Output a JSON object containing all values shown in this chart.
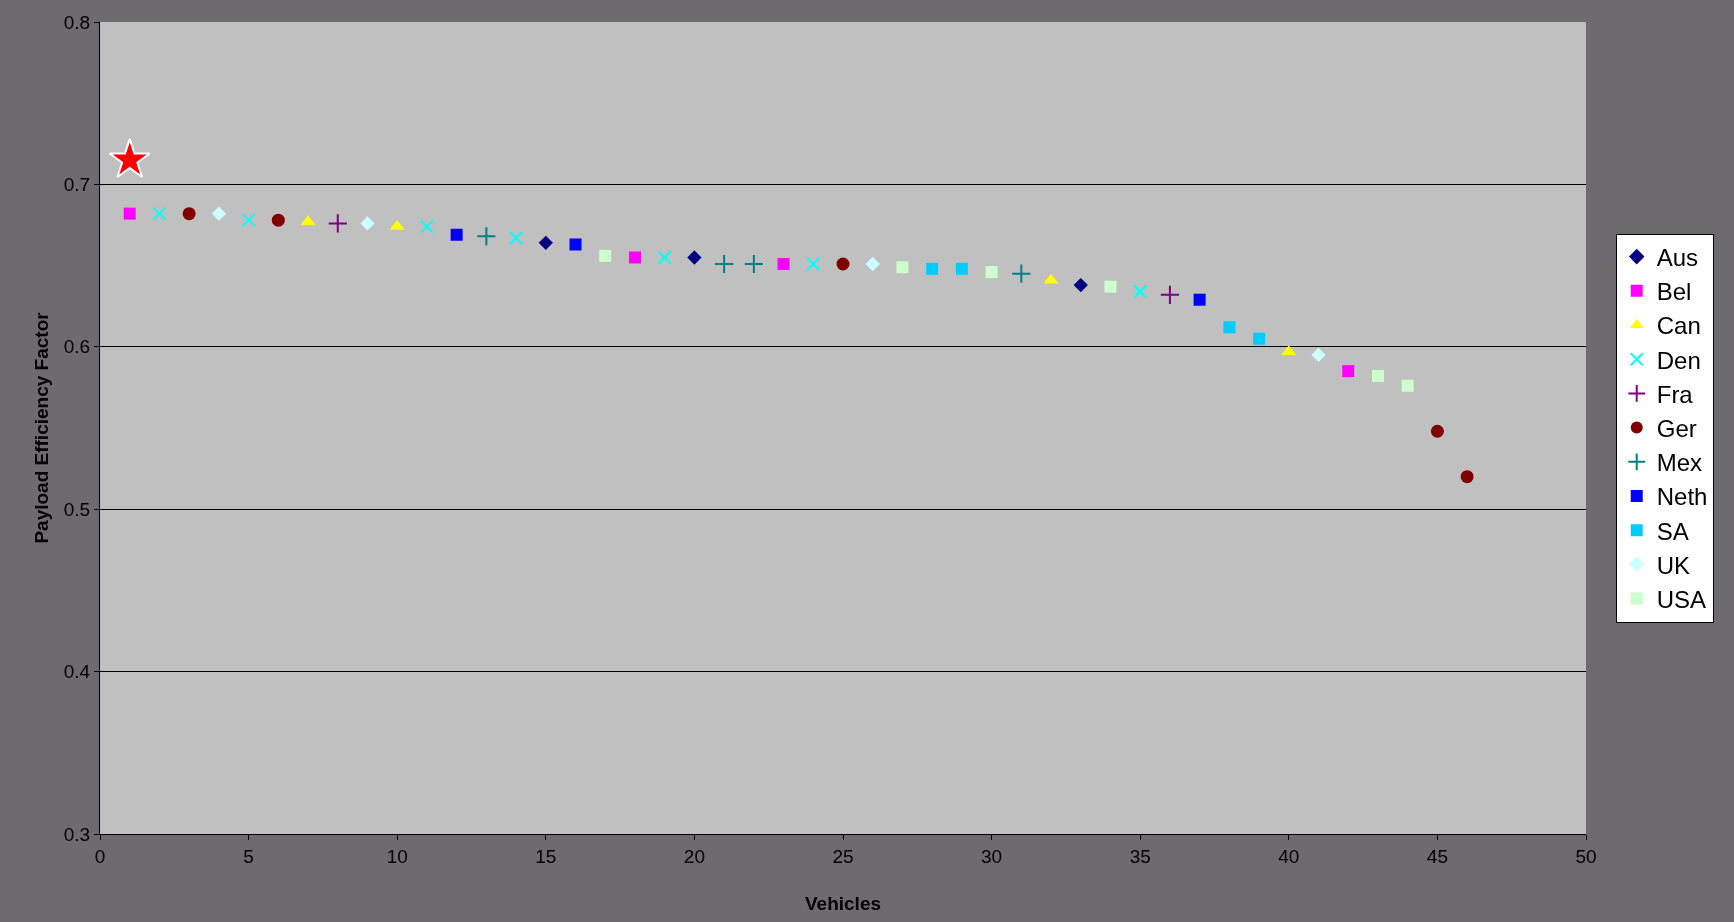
{
  "chart_data": {
    "type": "scatter",
    "xlabel": "Vehicles",
    "ylabel": "Payload Efficiency Factor",
    "xlim": [
      0,
      50
    ],
    "xticks": [
      0,
      5,
      10,
      15,
      20,
      25,
      30,
      35,
      40,
      45,
      50
    ],
    "ylim": [
      0.3,
      0.8
    ],
    "yticks": [
      0.3,
      0.4,
      0.5,
      0.6,
      0.7,
      0.8
    ],
    "grid": "y",
    "legend": "right",
    "series": [
      {
        "name": "Aus",
        "color": "#000080",
        "marker": "diamond",
        "x": [
          15,
          20,
          33
        ],
        "values": [
          0.664,
          0.655,
          0.638
        ]
      },
      {
        "name": "Bel",
        "color": "#ff00ff",
        "marker": "square",
        "x": [
          1,
          18,
          23,
          42
        ],
        "values": [
          0.682,
          0.655,
          0.651,
          0.585
        ]
      },
      {
        "name": "Can",
        "color": "#ffff00",
        "marker": "triangle",
        "x": [
          7,
          10,
          32,
          40
        ],
        "values": [
          0.677,
          0.674,
          0.641,
          0.597
        ]
      },
      {
        "name": "Den",
        "color": "#00ffff",
        "marker": "x",
        "x": [
          2,
          5,
          11,
          14,
          19,
          24,
          35
        ],
        "values": [
          0.682,
          0.678,
          0.674,
          0.667,
          0.655,
          0.651,
          0.634
        ]
      },
      {
        "name": "Fra",
        "color": "#800080",
        "marker": "cross",
        "x": [
          8,
          36
        ],
        "values": [
          0.676,
          0.632
        ]
      },
      {
        "name": "Ger",
        "color": "#800000",
        "marker": "circle",
        "x": [
          3,
          6,
          25,
          45,
          46
        ],
        "values": [
          0.682,
          0.678,
          0.651,
          0.548,
          0.52
        ]
      },
      {
        "name": "Mex",
        "color": "#008080",
        "marker": "cross",
        "x": [
          13,
          21,
          22,
          31
        ],
        "values": [
          0.668,
          0.651,
          0.651,
          0.645
        ]
      },
      {
        "name": "Neth",
        "color": "#0000ff",
        "marker": "square",
        "x": [
          12,
          16,
          37
        ],
        "values": [
          0.669,
          0.663,
          0.629
        ]
      },
      {
        "name": "SA",
        "color": "#00ccff",
        "marker": "square",
        "x": [
          28,
          29,
          38,
          39
        ],
        "values": [
          0.648,
          0.648,
          0.612,
          0.605
        ]
      },
      {
        "name": "UK",
        "color": "#ccffff",
        "marker": "diamond",
        "x": [
          4,
          9,
          26,
          41
        ],
        "values": [
          0.682,
          0.676,
          0.651,
          0.595
        ]
      },
      {
        "name": "USA",
        "color": "#ccffcc",
        "marker": "square",
        "x": [
          17,
          27,
          30,
          34,
          43,
          44
        ],
        "values": [
          0.656,
          0.649,
          0.646,
          0.637,
          0.582,
          0.576
        ]
      },
      {
        "color": "#ff0000",
        "marker": "star",
        "x": [
          1
        ],
        "values": [
          0.715
        ]
      }
    ]
  }
}
